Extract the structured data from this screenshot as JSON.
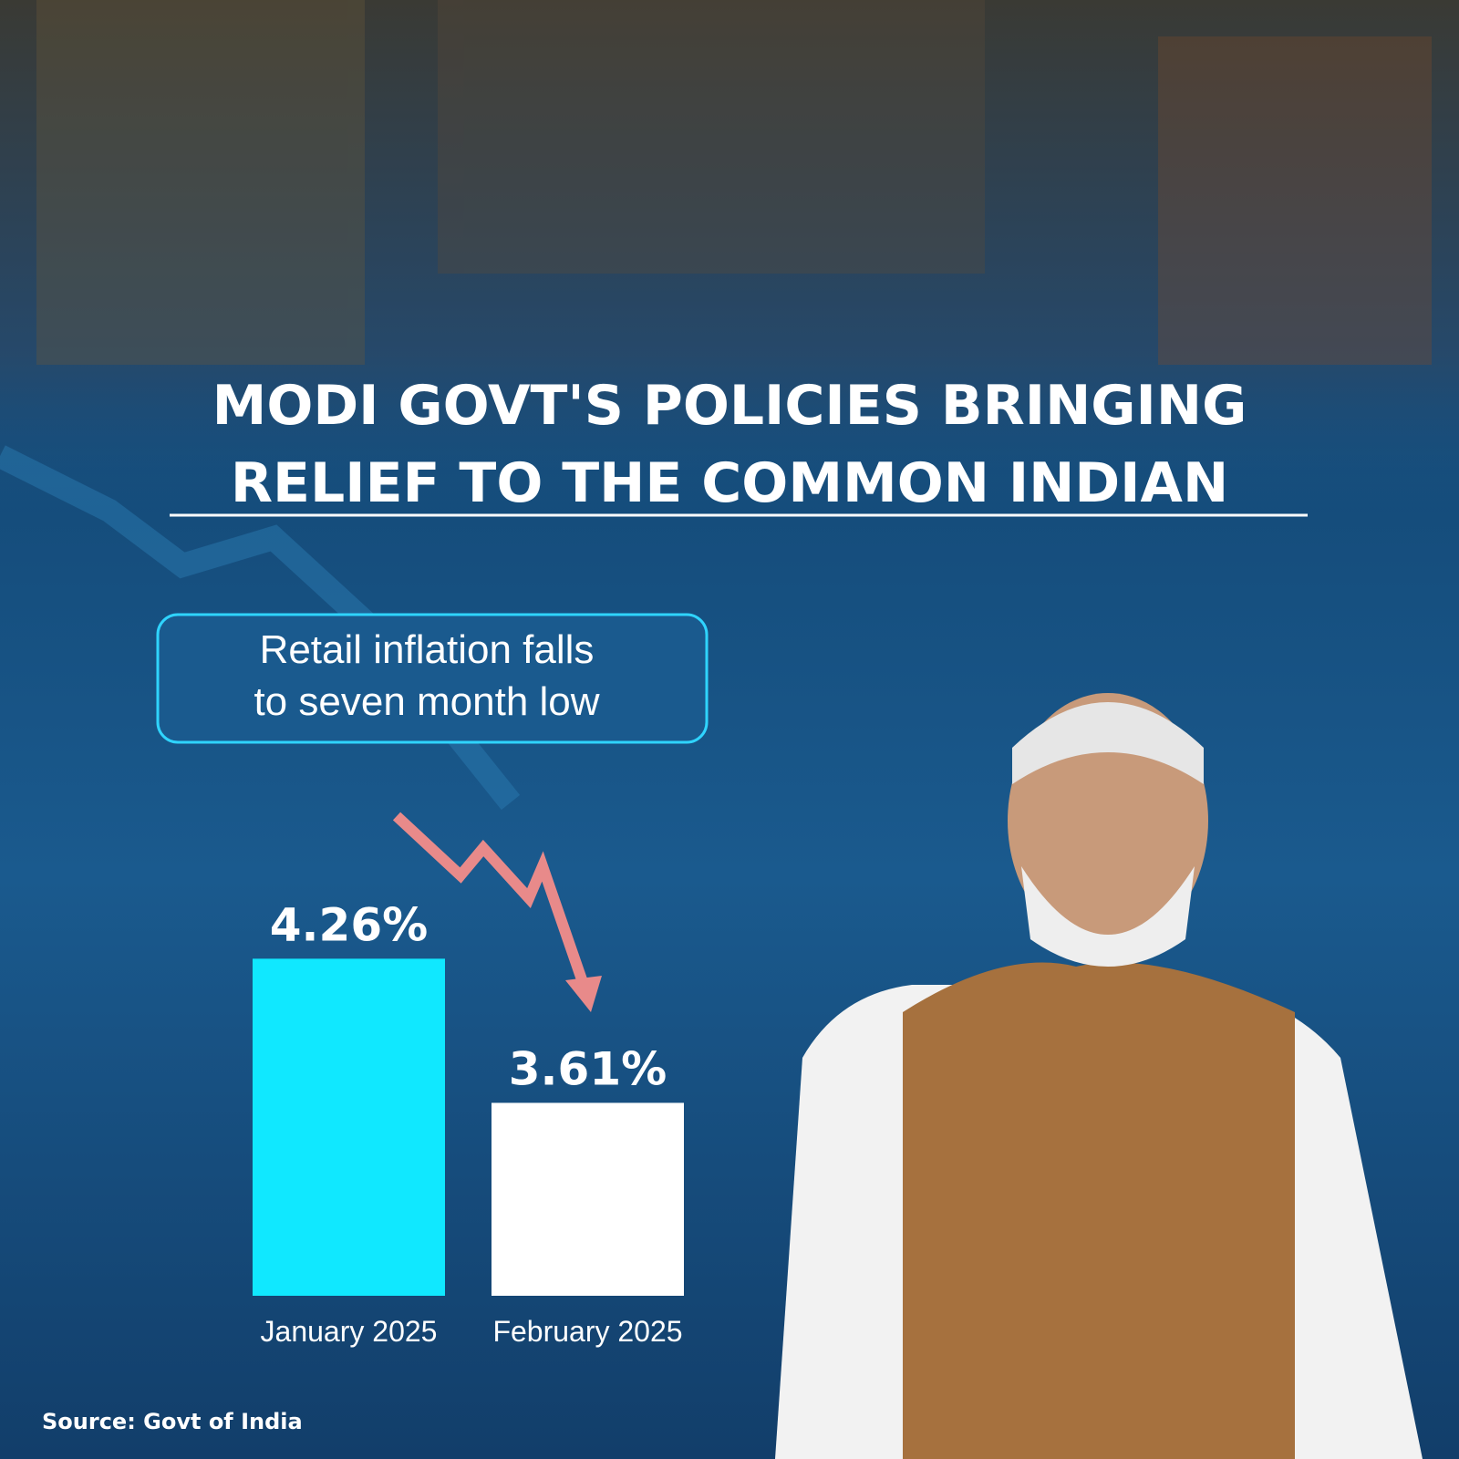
{
  "chart_data": {
    "type": "bar",
    "title": [
      "MODI GOVT'S POLICIES BRINGING",
      "RELIEF TO THE COMMON INDIAN"
    ],
    "annotation": [
      "Retail inflation falls",
      "to seven month low"
    ],
    "source": "Source: Govt of India",
    "categories": [
      "January 2025",
      "February 2025"
    ],
    "values": [
      4.26,
      3.61
    ],
    "value_labels": [
      "4.26%",
      "3.61%"
    ],
    "colors": [
      "#10e8ff",
      "#ffffff"
    ],
    "ylim": [
      2.74,
      4.5
    ]
  }
}
